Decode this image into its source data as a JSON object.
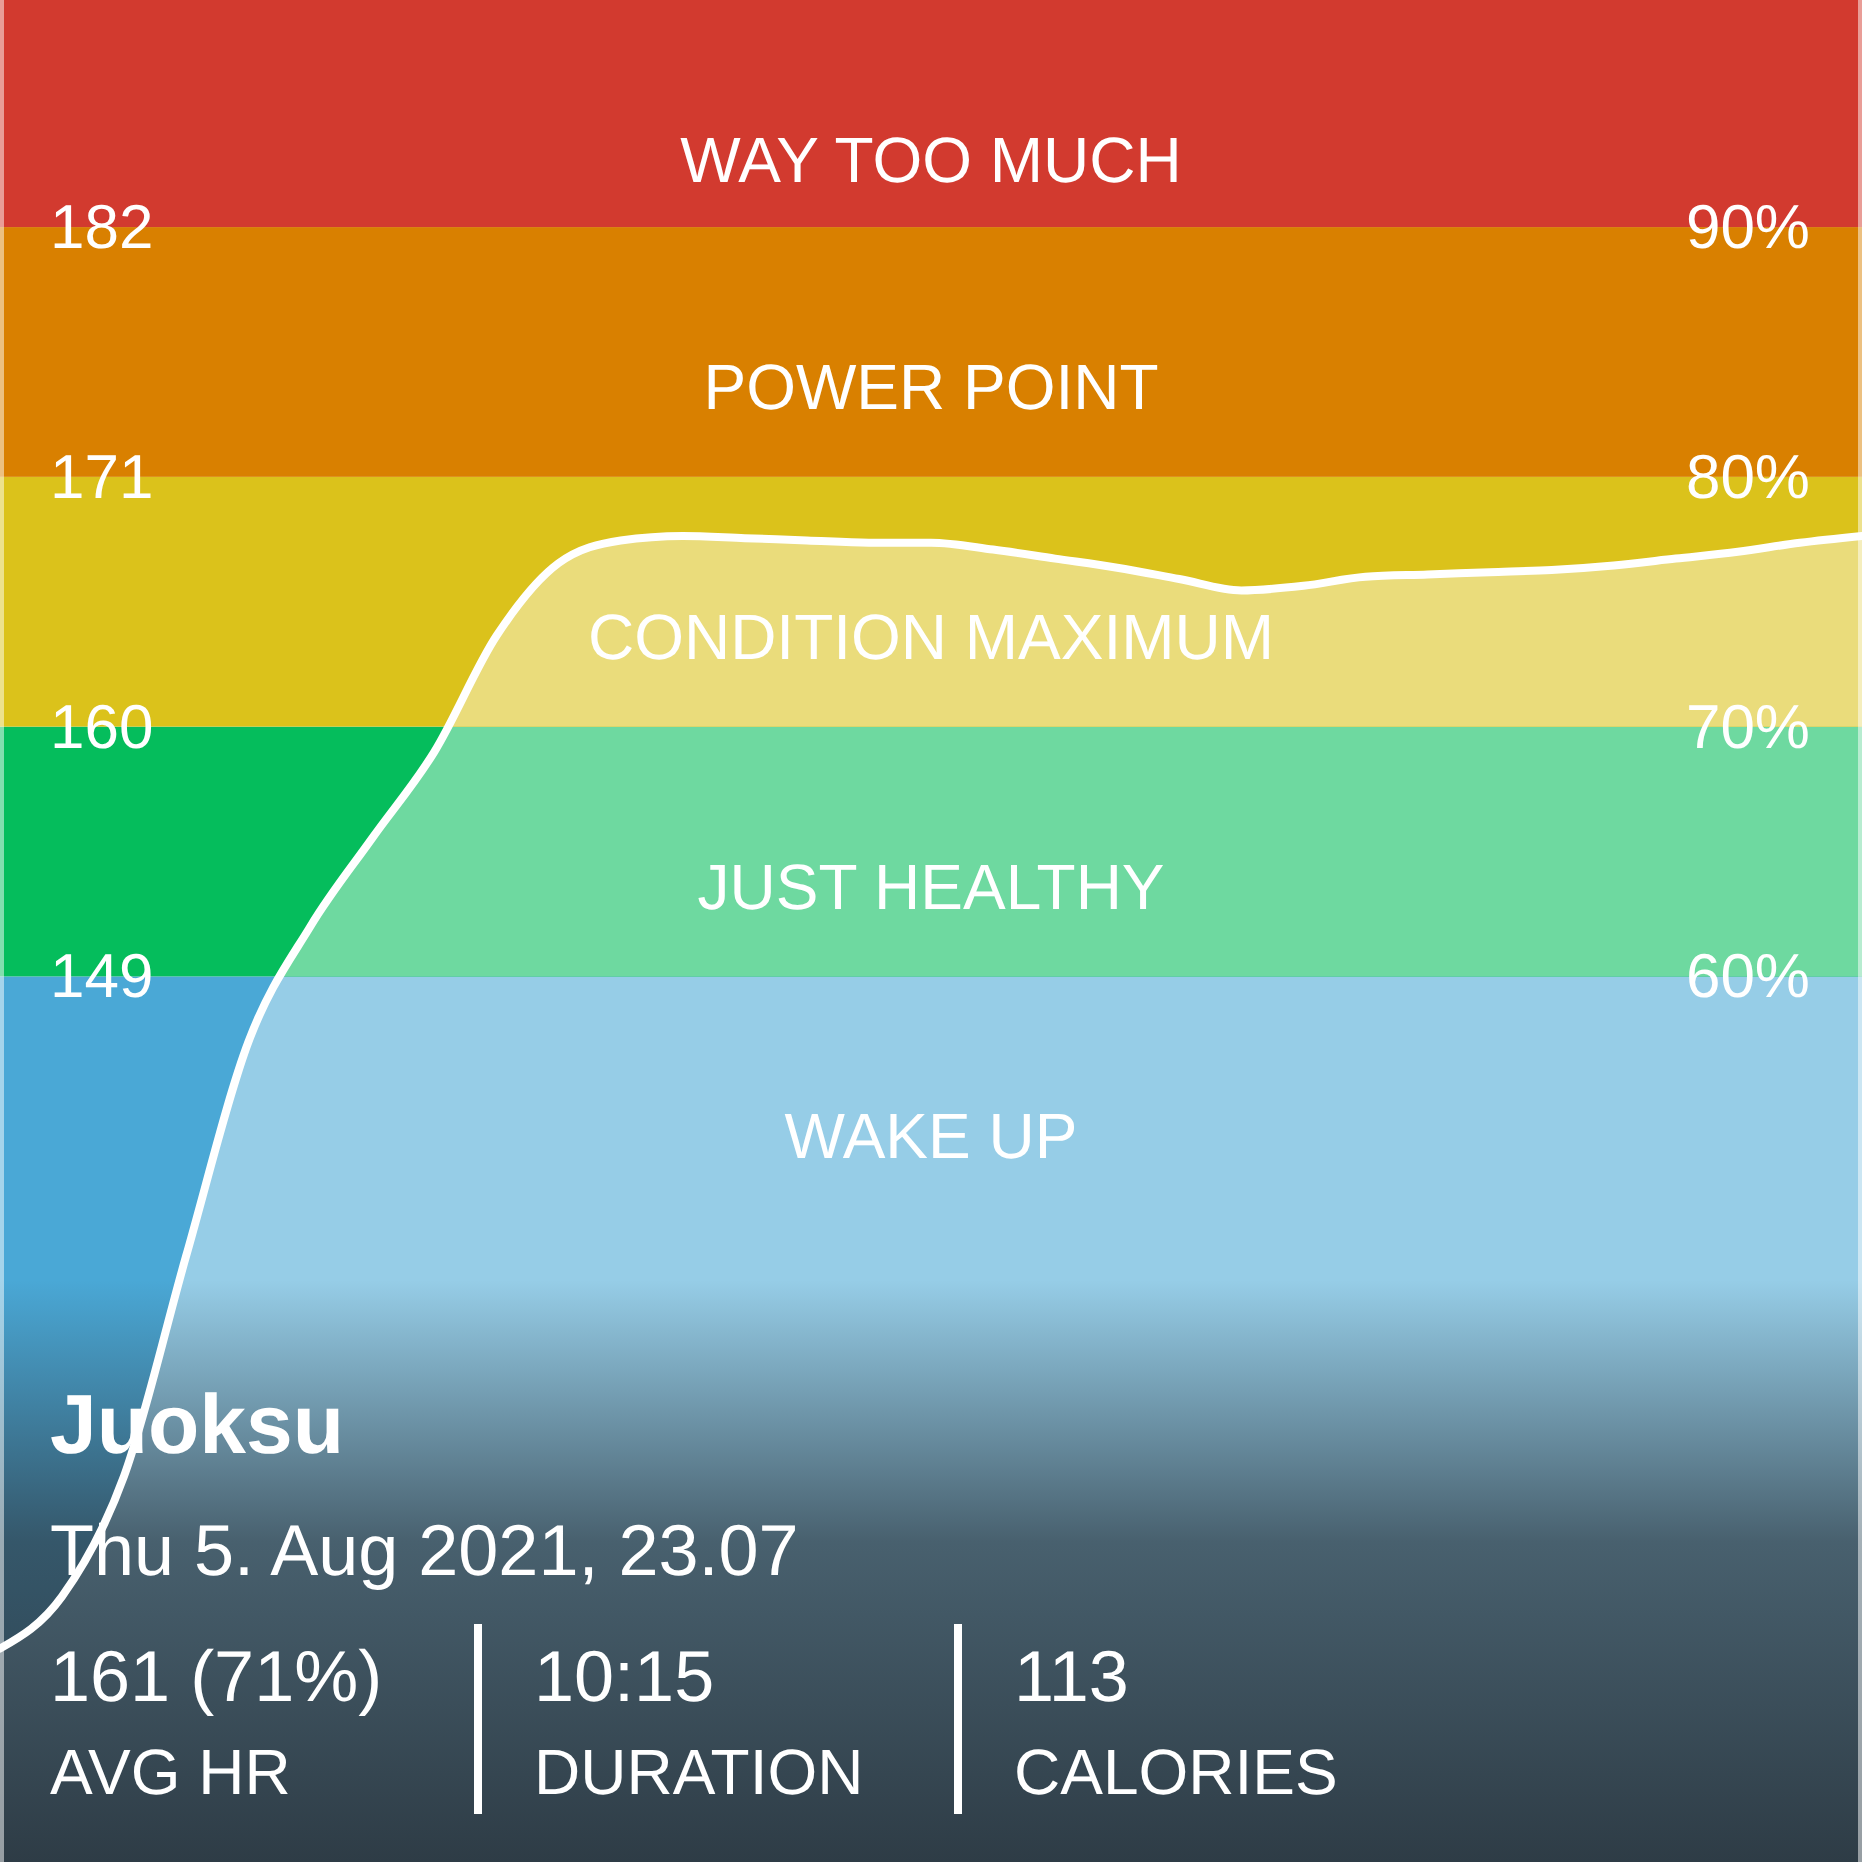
{
  "chart_data": {
    "type": "line",
    "title": "Juoksu",
    "subtitle": "Thu 5. Aug 2021, 23.07",
    "categories": [
      null,
      null,
      null,
      null,
      null,
      null,
      null,
      null,
      null,
      null,
      null,
      null,
      null,
      null,
      null,
      null,
      null,
      null,
      null,
      null,
      null,
      null,
      null,
      null,
      null,
      null,
      null,
      null,
      null,
      null,
      null
    ],
    "series": [
      {
        "color": "#ffffff",
        "values": [
          119.4,
          121.7,
          127.0,
          136.7,
          146.1,
          151.2,
          155.1,
          158.9,
          164.0,
          167.2,
          168.2,
          168.4,
          168.3,
          168.2,
          168.1,
          168.1,
          167.8,
          167.4,
          167.0,
          166.5,
          166.0,
          166.2,
          166.6,
          166.7,
          166.8,
          166.9,
          167.1,
          167.4,
          167.7,
          168.1,
          168.4
        ]
      }
    ],
    "ylim": [
      110,
      192
    ],
    "yticks": [
      149,
      160,
      171,
      182
    ],
    "y2lim": [
      24.55,
      99.09
    ],
    "y2ticks": [
      {
        "value": 60,
        "label": "60%"
      },
      {
        "value": 70,
        "label": "70%"
      },
      {
        "value": 80,
        "label": "80%"
      },
      {
        "value": 90,
        "label": "90%"
      }
    ],
    "bands": [
      {
        "axis": "y",
        "from": 110,
        "to": 149,
        "label": "WAKE UP",
        "color": "#4aa8d6"
      },
      {
        "axis": "y",
        "from": 149,
        "to": 160,
        "label": "JUST HEALTHY",
        "color": "#05bd5c"
      },
      {
        "axis": "y",
        "from": 160,
        "to": 171,
        "label": "CONDITION MAXIMUM",
        "color": "#dbc21b"
      },
      {
        "axis": "y",
        "from": 171,
        "to": 182,
        "label": "POWER POINT",
        "color": "#d98000"
      },
      {
        "axis": "y",
        "from": 182,
        "to": 192,
        "label": "WAY TOO MUCH",
        "color": "#d23a2f"
      }
    ],
    "annotations": [
      "161 (71%)",
      "AVG HR",
      "10:15",
      "DURATION",
      "113",
      "CALORIES"
    ],
    "grid": false,
    "marker": "none",
    "line_style": "solid"
  }
}
